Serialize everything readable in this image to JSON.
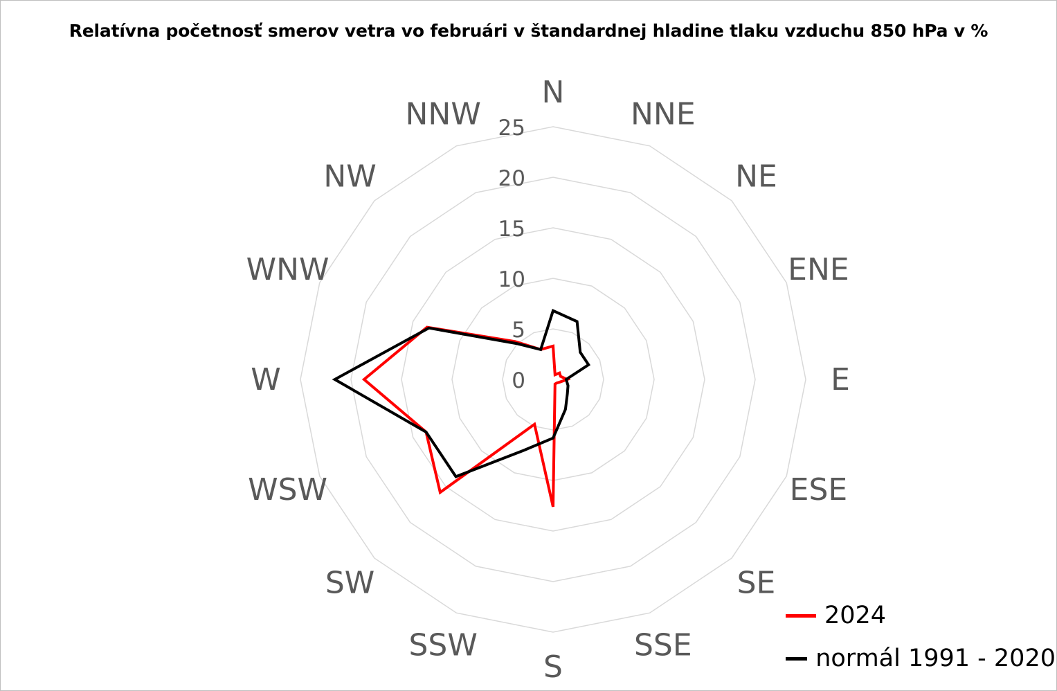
{
  "chart_data": {
    "type": "radar",
    "title": "Relatívna početnosť smerov  vetra vo februári v štandardnej hladine tlaku vzduchu 850 hPa v %",
    "categories": [
      "N",
      "NNE",
      "NE",
      "ENE",
      "E",
      "ESE",
      "SE",
      "SSE",
      "S",
      "SSW",
      "SW",
      "WSW",
      "W",
      "WNW",
      "NW",
      "NNW"
    ],
    "rlim": [
      0,
      25
    ],
    "rticks": [
      "0",
      "5",
      "10",
      "15",
      "20",
      "25"
    ],
    "series": [
      {
        "name": "2024",
        "color": "#ff0000",
        "values": [
          3.3,
          0.5,
          0.9,
          0.8,
          1.4,
          0.7,
          0.5,
          0.5,
          12.6,
          4.8,
          15.8,
          13.6,
          18.7,
          13.5,
          5.3,
          3.2
        ]
      },
      {
        "name": "normál 1991 - 2020",
        "color": "#000000",
        "values": [
          6.8,
          6.2,
          3.8,
          3.8,
          1.3,
          1.6,
          2.0,
          3.2,
          5.8,
          7.6,
          13.6,
          13.6,
          21.6,
          13.3,
          5.0,
          3.2
        ]
      }
    ],
    "grid": true,
    "legend_position": "bottom-right"
  }
}
